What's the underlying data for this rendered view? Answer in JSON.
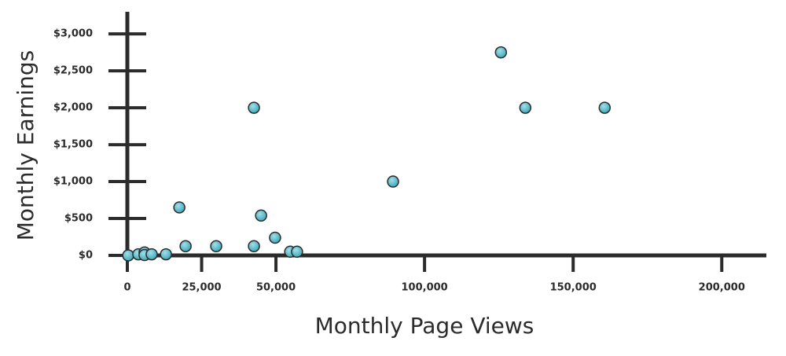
{
  "chart_data": {
    "type": "scatter",
    "x_label": "Monthly Page Views",
    "y_label": "Monthly Earnings",
    "xlim": [
      0,
      215000
    ],
    "ylim": [
      0,
      3300
    ],
    "xticks": [
      0,
      {
        "value": 25000,
        "label": "25,000"
      },
      {
        "value": 50000,
        "label": "50,000"
      },
      {
        "value": 100000,
        "label": "100,000"
      },
      {
        "value": 150000,
        "label": "150,000"
      },
      {
        "value": 200000,
        "label": "200,000"
      }
    ],
    "yticks": [
      {
        "value": 0,
        "label": "$0"
      },
      {
        "value": 500,
        "label": "$500"
      },
      {
        "value": 1000,
        "label": "$1,000"
      },
      {
        "value": 1500,
        "label": "$1,500"
      },
      {
        "value": 2000,
        "label": "$2,000"
      },
      {
        "value": 2500,
        "label": "$2,500"
      },
      {
        "value": 3000,
        "label": "$3,000"
      }
    ],
    "color": "#5bbccc",
    "x": [
      300,
      3700,
      5800,
      5800,
      8200,
      13000,
      17500,
      19600,
      29900,
      42600,
      42600,
      45000,
      49700,
      54800,
      57100,
      89400,
      125700,
      133900,
      160600
    ],
    "values": [
      0,
      15,
      40,
      5,
      15,
      15,
      650,
      125,
      125,
      2000,
      125,
      540,
      240,
      50,
      50,
      1000,
      2750,
      2000,
      2000
    ]
  }
}
